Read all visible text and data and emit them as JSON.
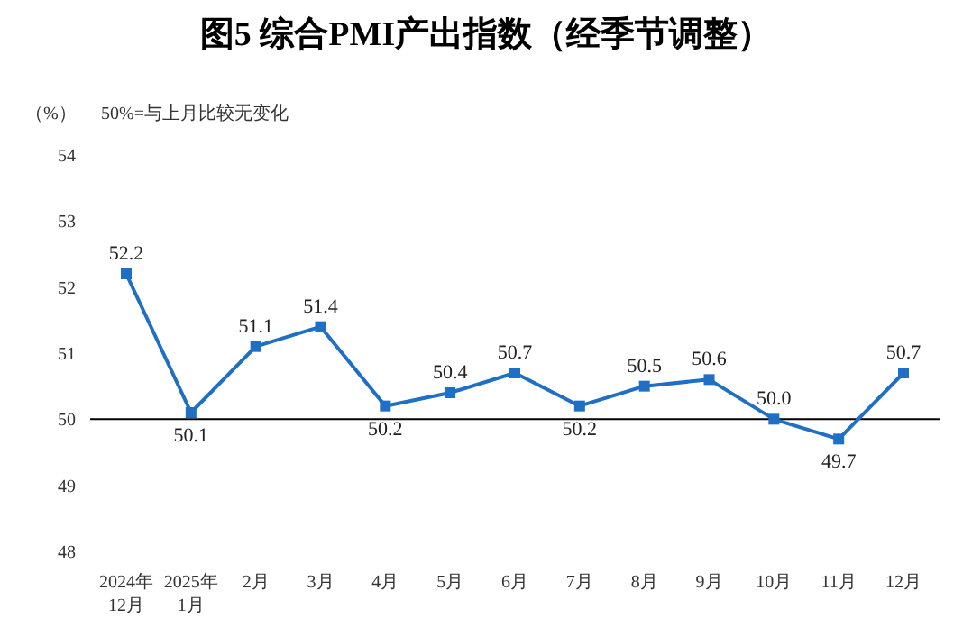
{
  "chart_data": {
    "type": "line",
    "title": "图5  综合PMI产出指数（经季节调整）",
    "ylabel": "（%）",
    "annotations": [
      "50%=与上月比较无变化"
    ],
    "categories": [
      "2024年\n12月",
      "2025年\n1月",
      "2月",
      "3月",
      "4月",
      "5月",
      "6月",
      "7月",
      "8月",
      "9月",
      "10月",
      "11月",
      "12月"
    ],
    "series": [
      {
        "color": "#1f6fc5",
        "values": [
          52.2,
          50.1,
          51.1,
          51.4,
          50.2,
          50.4,
          50.7,
          50.2,
          50.5,
          50.6,
          50.0,
          49.7,
          50.7
        ],
        "value_labels": [
          "52.2",
          "50.1",
          "51.1",
          "51.4",
          "50.2",
          "50.4",
          "50.7",
          "50.2",
          "50.5",
          "50.6",
          "50.0",
          "49.7",
          "50.7"
        ]
      }
    ],
    "ylim": [
      48,
      54
    ],
    "yticks": [
      48,
      49,
      50,
      51,
      52,
      53,
      54
    ],
    "ref_lines": [
      {
        "axis": "y",
        "value": 50,
        "color": "#000000"
      }
    ],
    "marker": "square",
    "grid": false,
    "legend": false
  }
}
